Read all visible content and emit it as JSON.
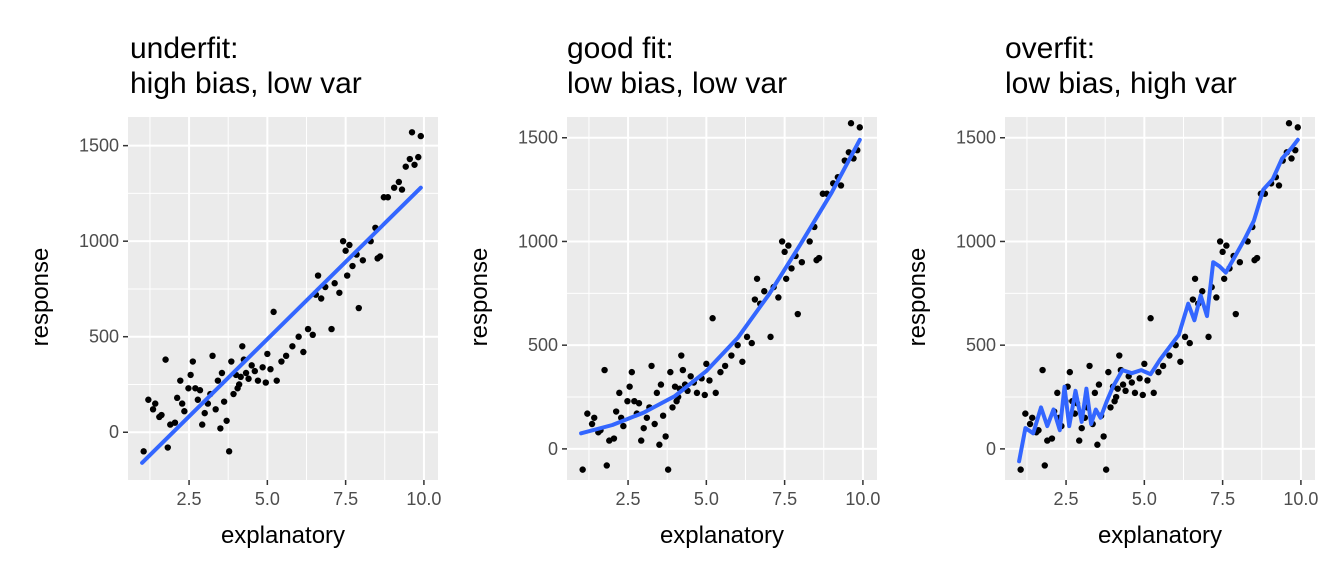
{
  "chart_data": [
    {
      "type": "scatter",
      "title_lines": [
        "underfit:",
        "high bias, low var"
      ],
      "xlabel": "explanatory",
      "ylabel": "response",
      "xlim": [
        0.55,
        10.45
      ],
      "ylim": [
        -250,
        1650
      ],
      "xticks": [
        2.5,
        5.0,
        7.5,
        10.0
      ],
      "xtick_labels": [
        "2.5",
        "5.0",
        "7.5",
        "10.0"
      ],
      "yticks": [
        0,
        500,
        1000,
        1500
      ],
      "ytick_labels": [
        "0",
        "500",
        "1000",
        "1500"
      ],
      "grid": true,
      "fit_color": "#3366ff",
      "fit": {
        "x": [
          1.0,
          9.9
        ],
        "y": [
          -160,
          1280
        ]
      }
    },
    {
      "type": "scatter",
      "title_lines": [
        "good fit:",
        "low bias, low var"
      ],
      "xlabel": "explanatory",
      "ylabel": "response",
      "xlim": [
        0.55,
        10.45
      ],
      "ylim": [
        -150,
        1600
      ],
      "xticks": [
        2.5,
        5.0,
        7.5,
        10.0
      ],
      "xtick_labels": [
        "2.5",
        "5.0",
        "7.5",
        "10.0"
      ],
      "yticks": [
        0,
        500,
        1000,
        1500
      ],
      "ytick_labels": [
        "0",
        "500",
        "1000",
        "1500"
      ],
      "grid": true,
      "fit_color": "#3366ff",
      "fit": {
        "x": [
          1.0,
          2.0,
          3.0,
          4.0,
          5.0,
          6.0,
          7.0,
          8.0,
          9.0,
          9.9
        ],
        "y": [
          75,
          115,
          175,
          255,
          375,
          535,
          745,
          985,
          1235,
          1490
        ]
      }
    },
    {
      "type": "scatter",
      "title_lines": [
        "overfit:",
        "low bias, high var"
      ],
      "xlabel": "explanatory",
      "ylabel": "response",
      "xlim": [
        0.55,
        10.45
      ],
      "ylim": [
        -150,
        1600
      ],
      "xticks": [
        2.5,
        5.0,
        7.5,
        10.0
      ],
      "xtick_labels": [
        "2.5",
        "5.0",
        "7.5",
        "10.0"
      ],
      "yticks": [
        0,
        500,
        1000,
        1500
      ],
      "ytick_labels": [
        "0",
        "500",
        "1000",
        "1500"
      ],
      "grid": true,
      "fit_color": "#3366ff",
      "fit": {
        "x": [
          1.0,
          1.2,
          1.45,
          1.7,
          1.9,
          2.1,
          2.3,
          2.45,
          2.6,
          2.8,
          3.0,
          3.15,
          3.3,
          3.45,
          3.6,
          3.8,
          4.0,
          4.3,
          4.6,
          4.9,
          5.2,
          5.5,
          5.8,
          6.1,
          6.4,
          6.6,
          6.8,
          7.0,
          7.2,
          7.4,
          7.6,
          7.9,
          8.2,
          8.5,
          8.8,
          9.1,
          9.4,
          9.7,
          9.9
        ],
        "y": [
          -60,
          100,
          75,
          200,
          110,
          190,
          90,
          300,
          110,
          280,
          130,
          290,
          120,
          190,
          150,
          230,
          300,
          380,
          365,
          380,
          360,
          430,
          490,
          550,
          700,
          620,
          740,
          640,
          900,
          880,
          850,
          930,
          1010,
          1100,
          1250,
          1300,
          1400,
          1450,
          1490
        ]
      }
    }
  ],
  "points": {
    "x": [
      1.05,
      1.2,
      1.35,
      1.42,
      1.55,
      1.62,
      1.75,
      1.82,
      1.9,
      2.05,
      2.12,
      2.22,
      2.28,
      2.35,
      2.48,
      2.55,
      2.62,
      2.7,
      2.78,
      2.85,
      2.92,
      3.0,
      3.1,
      3.18,
      3.25,
      3.35,
      3.42,
      3.5,
      3.55,
      3.62,
      3.7,
      3.78,
      3.85,
      3.92,
      4.0,
      4.05,
      4.1,
      4.15,
      4.2,
      4.25,
      4.32,
      4.4,
      4.5,
      4.6,
      4.7,
      4.85,
      4.95,
      5.0,
      5.1,
      5.2,
      5.3,
      5.45,
      5.6,
      5.8,
      6.0,
      6.15,
      6.3,
      6.45,
      6.55,
      6.62,
      6.72,
      6.85,
      7.05,
      7.15,
      7.3,
      7.42,
      7.5,
      7.55,
      7.62,
      7.72,
      7.85,
      7.92,
      8.05,
      8.3,
      8.45,
      8.52,
      8.6,
      8.72,
      8.85,
      9.05,
      9.2,
      9.3,
      9.42,
      9.55,
      9.62,
      9.7,
      9.82,
      9.9
    ],
    "y": [
      -100,
      170,
      120,
      150,
      80,
      90,
      380,
      -80,
      40,
      50,
      180,
      270,
      150,
      110,
      230,
      300,
      370,
      230,
      170,
      220,
      40,
      100,
      150,
      200,
      400,
      120,
      270,
      20,
      310,
      160,
      60,
      -100,
      370,
      200,
      300,
      230,
      250,
      290,
      450,
      380,
      310,
      280,
      350,
      320,
      270,
      340,
      260,
      410,
      330,
      630,
      270,
      370,
      400,
      450,
      500,
      420,
      540,
      510,
      720,
      820,
      700,
      760,
      540,
      780,
      730,
      1000,
      950,
      820,
      980,
      870,
      930,
      650,
      900,
      1000,
      1070,
      910,
      920,
      1230,
      1230,
      1280,
      1310,
      1270,
      1390,
      1430,
      1570,
      1400,
      1440,
      1550
    ]
  }
}
